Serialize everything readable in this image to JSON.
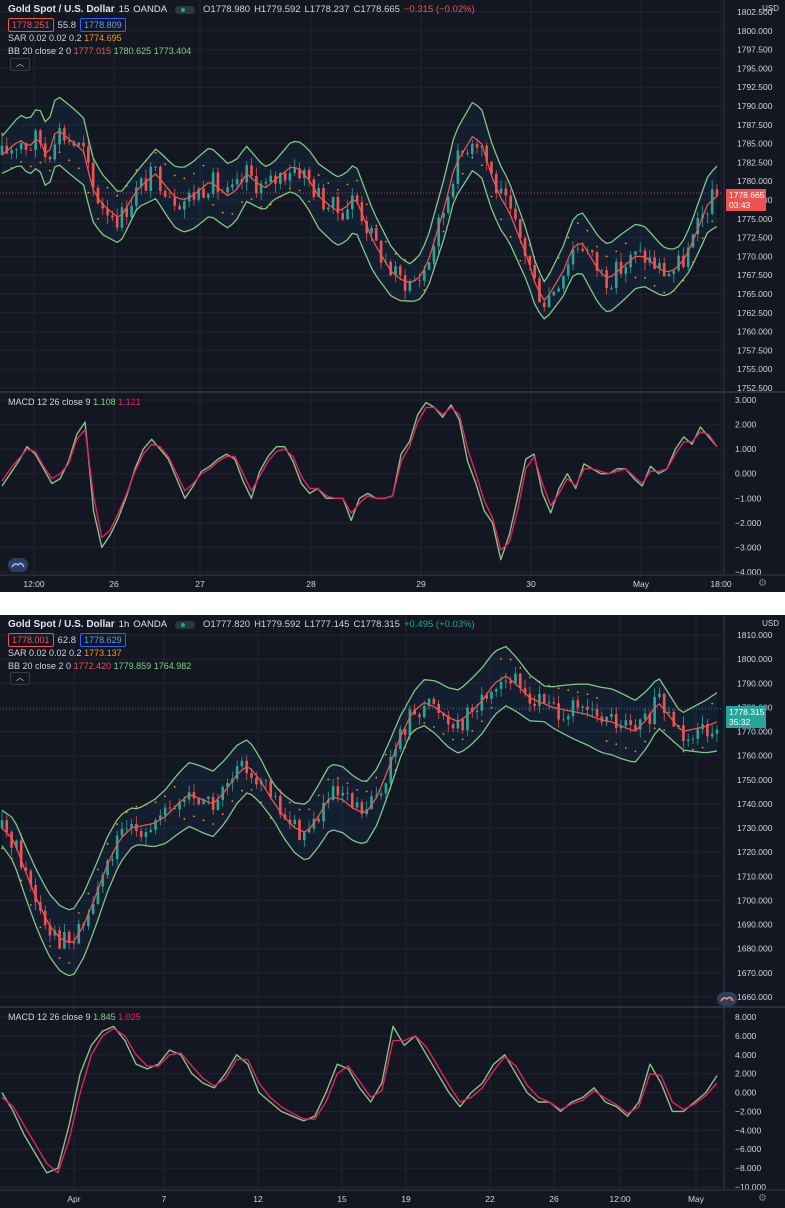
{
  "charts": [
    {
      "symbol": "Gold Spot / U.S. Dollar",
      "timeframe": "15",
      "broker": "OANDA",
      "bid": "1778.251",
      "spread": "55.8",
      "ask": "1778.809",
      "ohlc": {
        "o": "O1778.980",
        "h": "H1779.592",
        "l": "L1778.237",
        "c": "C1778.665",
        "chg": "−0.315 (−0.02%)"
      },
      "chg_color": "#ef5350",
      "sar_label": "SAR 0.02 0.02 0.2",
      "sar_value": "1774.695",
      "bb_label": "BB 20 close 2 0",
      "bb_basis": "1777.015",
      "bb_upper": "1780.625",
      "bb_lower": "1773.404",
      "macd_label": "MACD 12 26 close 9",
      "macd_value": "1.108",
      "signal_value": "1.121",
      "currency": "USD",
      "price_tag": "1778.665",
      "countdown": "03:43",
      "tag_color": "#ef5350",
      "price_ticks": [
        "1802.500",
        "1800.000",
        "1797.500",
        "1795.000",
        "1792.500",
        "1790.000",
        "1787.500",
        "1785.000",
        "1782.500",
        "1780.000",
        "1777.500",
        "1775.000",
        "1772.500",
        "1770.000",
        "1767.500",
        "1765.000",
        "1762.500",
        "1760.000",
        "1757.500",
        "1755.000",
        "1752.500"
      ],
      "macd_ticks": [
        "3.000",
        "2.000",
        "1.000",
        "0.000",
        "−1.000",
        "−2.000",
        "−3.000",
        "−4.000"
      ],
      "time_ticks": [
        "12:00",
        "26",
        "27",
        "28",
        "29",
        "30",
        "May",
        "18:00"
      ],
      "chart_data": {
        "type": "line",
        "title": "Gold Spot / U.S. Dollar · 15 · OANDA",
        "ylim": [
          1752.5,
          1802.5
        ],
        "grid": true,
        "series": [
          {
            "name": "BB 20 close 2 0 basis",
            "values": [
              1783.5,
              1784.5,
              1785.5,
              1784.5,
              1786,
              1783,
              1787,
              1786,
              1785,
              1784,
              1779,
              1777,
              1776,
              1775,
              1777,
              1779,
              1780,
              1781,
              1779.5,
              1778,
              1777.5,
              1778,
              1779,
              1780,
              1779,
              1778,
              1779,
              1781,
              1780,
              1779,
              1780,
              1781,
              1782,
              1781.5,
              1780,
              1778,
              1777,
              1776,
              1776.5,
              1778,
              1775,
              1772,
              1770,
              1768,
              1767,
              1766.5,
              1767,
              1769,
              1773,
              1777,
              1782,
              1784,
              1786,
              1785,
              1781,
              1778,
              1776,
              1773,
              1770,
              1766,
              1764,
              1766,
              1768,
              1771,
              1772,
              1770,
              1768,
              1767,
              1768,
              1769,
              1770,
              1770,
              1769,
              1768,
              1768,
              1769,
              1771,
              1774,
              1777,
              1778
            ]
          },
          {
            "name": "MACD",
            "values": [
              -0.5,
              0,
              0.5,
              1.1,
              0.8,
              0.2,
              -0.4,
              -0.2,
              0.5,
              1.6,
              2.1,
              -1.5,
              -3,
              -2.5,
              -1.8,
              -0.9,
              0.2,
              1,
              1.4,
              1,
              0.6,
              -0.2,
              -1,
              -0.5,
              0.1,
              0.3,
              0.6,
              0.8,
              0.6,
              -0.3,
              -1,
              0.1,
              0.7,
              1.1,
              1.1,
              0.5,
              -0.4,
              -0.8,
              -0.6,
              -1,
              -1,
              -1,
              -1.9,
              -1,
              -0.8,
              -1,
              -1,
              -0.9,
              0.8,
              1.3,
              2.4,
              2.9,
              2.7,
              2.3,
              2.8,
              2.2,
              0.5,
              -0.4,
              -1.5,
              -2,
              -3.5,
              -2.5,
              -1,
              0.6,
              0.8,
              -0.8,
              -1.6,
              -0.6,
              0,
              -0.6,
              0.4,
              0.2,
              0,
              0,
              0.2,
              0.2,
              -0.2,
              -0.5,
              0.3,
              0,
              0.2,
              1,
              1.5,
              1.2,
              1.9,
              1.5,
              1.1
            ]
          },
          {
            "name": "Signal",
            "values": [
              -0.3,
              0.2,
              0.6,
              1,
              0.9,
              0.3,
              -0.2,
              0,
              0.4,
              1.4,
              1.8,
              -0.9,
              -2.6,
              -2.3,
              -1.6,
              -0.8,
              0.1,
              0.8,
              1.2,
              1.1,
              0.7,
              0,
              -0.7,
              -0.4,
              0,
              0.2,
              0.5,
              0.7,
              0.7,
              0,
              -0.7,
              -0.1,
              0.5,
              0.9,
              1,
              0.7,
              -0.1,
              -0.6,
              -0.6,
              -0.9,
              -1,
              -1,
              -1.6,
              -1.2,
              -0.9,
              -1,
              -1,
              -0.9,
              0.5,
              1.1,
              2.1,
              2.7,
              2.7,
              2.4,
              2.7,
              2.4,
              1,
              0,
              -1.1,
              -1.8,
              -3.1,
              -2.8,
              -1.5,
              0.2,
              0.7,
              -0.4,
              -1.3,
              -0.8,
              -0.2,
              -0.5,
              0.2,
              0.2,
              0.1,
              0,
              0.1,
              0.2,
              -0.1,
              -0.4,
              0.1,
              0.1,
              0.2,
              0.8,
              1.3,
              1.3,
              1.7,
              1.6,
              1.1
            ]
          }
        ]
      }
    },
    {
      "symbol": "Gold Spot / U.S. Dollar",
      "timeframe": "1h",
      "broker": "OANDA",
      "bid": "1778.001",
      "spread": "62.8",
      "ask": "1778.629",
      "ohlc": {
        "o": "O1777.820",
        "h": "H1779.592",
        "l": "L1777.145",
        "c": "C1778.315",
        "chg": "+0.495 (+0.03%)"
      },
      "chg_color": "#26a69a",
      "sar_label": "SAR 0.02 0.02 0.2",
      "sar_value": "1773.137",
      "bb_label": "BB 20 close 2 0",
      "bb_basis": "1772.420",
      "bb_upper": "1779.859",
      "bb_lower": "1764.982",
      "macd_label": "MACD 12 26 close 9",
      "macd_value": "1.845",
      "signal_value": "1.025",
      "currency": "USD",
      "price_tag": "1778.315",
      "countdown": "35:32",
      "tag_color": "#26a69a",
      "price_ticks": [
        "1810.000",
        "1800.000",
        "1790.000",
        "1780.000",
        "1770.000",
        "1760.000",
        "1750.000",
        "1740.000",
        "1730.000",
        "1720.000",
        "1710.000",
        "1700.000",
        "1690.000",
        "1680.000",
        "1670.000",
        "1660.000"
      ],
      "macd_ticks": [
        "8.000",
        "6.000",
        "4.000",
        "2.000",
        "0.000",
        "−2.000",
        "−4.000",
        "−6.000",
        "−8.000",
        "−10.000"
      ],
      "time_ticks": [
        "Apr",
        "7",
        "12",
        "15",
        "19",
        "22",
        "26",
        "12:00",
        "May"
      ],
      "chart_data": {
        "type": "line",
        "title": "Gold Spot / U.S. Dollar · 1h · OANDA",
        "ylim": [
          1660,
          1810
        ],
        "grid": true,
        "series": [
          {
            "name": "BB 20 close 2 0 basis",
            "values": [
              1730,
              1725,
              1712,
              1700,
              1690,
              1684,
              1682,
              1690,
              1702,
              1715,
              1725,
              1730,
              1731,
              1732,
              1735,
              1740,
              1744,
              1742,
              1740,
              1745,
              1752,
              1756,
              1750,
              1742,
              1735,
              1730,
              1728,
              1735,
              1743,
              1742,
              1738,
              1736,
              1743,
              1755,
              1768,
              1778,
              1782,
              1780,
              1776,
              1774,
              1778,
              1783,
              1790,
              1793,
              1789,
              1784,
              1782,
              1780,
              1779,
              1778,
              1777,
              1775,
              1774,
              1772,
              1770,
              1775,
              1782,
              1776,
              1770,
              1771,
              1772,
              1774
            ]
          },
          {
            "name": "MACD",
            "values": [
              0,
              -2,
              -4.5,
              -6.5,
              -8.5,
              -8,
              -3.5,
              2,
              5,
              6.5,
              7,
              5.5,
              3,
              2.5,
              3,
              4.5,
              4,
              2,
              1,
              0.5,
              2,
              4,
              3,
              0,
              -1,
              -2,
              -2.5,
              -3,
              -2.5,
              0,
              3,
              2.5,
              0.5,
              -1,
              1,
              7,
              5,
              6,
              4,
              2,
              0,
              -1.5,
              0,
              1,
              3,
              4,
              2,
              0,
              -1,
              -1,
              -2,
              -1,
              -0.5,
              0.5,
              -1,
              -1.5,
              -2.5,
              -1,
              3,
              1,
              -2,
              -2,
              -1,
              0,
              1.8
            ]
          },
          {
            "name": "Signal",
            "values": [
              -0.5,
              -1.5,
              -3.5,
              -5.5,
              -7.5,
              -8.5,
              -5,
              0,
              4,
              6,
              6.8,
              6,
              4,
              2.8,
              2.8,
              4,
              4.2,
              2.8,
              1.5,
              0.7,
              1.5,
              3.5,
              3.5,
              1,
              -0.5,
              -1.5,
              -2.2,
              -2.8,
              -2.8,
              -1,
              2,
              2.8,
              1.2,
              -0.5,
              0.2,
              5.5,
              5.5,
              6,
              4.8,
              2.8,
              0.8,
              -1,
              -0.5,
              0.5,
              2.3,
              3.8,
              2.8,
              0.8,
              -0.5,
              -1,
              -1.8,
              -1.2,
              -0.8,
              0.2,
              -0.6,
              -1.3,
              -2.2,
              -1.5,
              2,
              1.8,
              -1,
              -1.8,
              -1.2,
              -0.3,
              1
            ]
          }
        ]
      }
    }
  ]
}
